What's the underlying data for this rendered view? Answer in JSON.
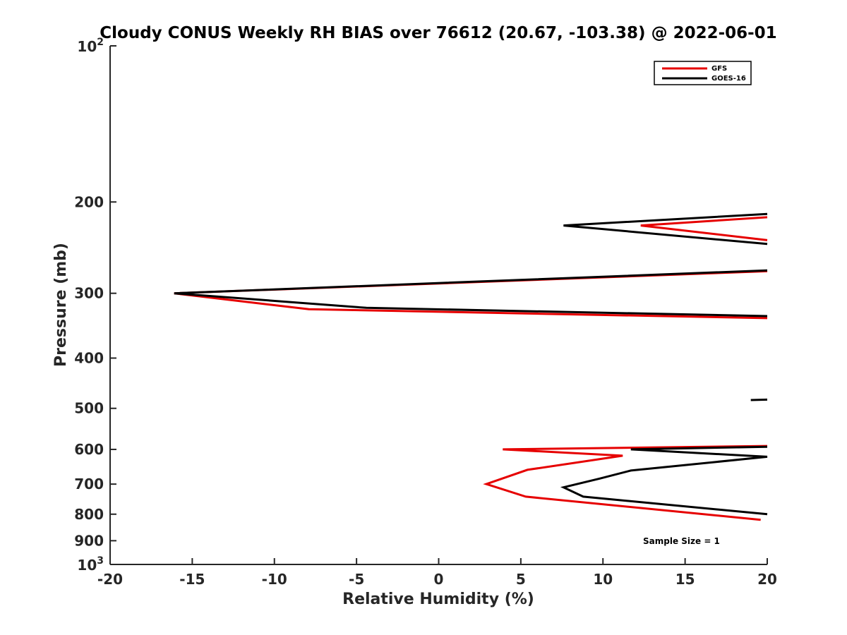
{
  "chart_data": {
    "type": "line",
    "title": "Cloudy CONUS Weekly RH BIAS over 76612 (20.67, -103.38) @ 2022-06-01",
    "xlabel": "Relative Humidity (%)",
    "ylabel": "Pressure (mb)",
    "xlim": [
      -20,
      20
    ],
    "ylim": [
      100,
      1000
    ],
    "yscale": "log",
    "yreversed": true,
    "x_ticks": [
      {
        "value": -20,
        "label": "-20"
      },
      {
        "value": -15,
        "label": "-15"
      },
      {
        "value": -10,
        "label": "-10"
      },
      {
        "value": -5,
        "label": "-5"
      },
      {
        "value": 0,
        "label": "0"
      },
      {
        "value": 5,
        "label": "5"
      },
      {
        "value": 10,
        "label": "10"
      },
      {
        "value": 15,
        "label": "15"
      },
      {
        "value": 20,
        "label": "20"
      }
    ],
    "y_ticks": [
      {
        "value": 100,
        "label": "10",
        "sup": "2"
      },
      {
        "value": 200,
        "label": "200"
      },
      {
        "value": 300,
        "label": "300"
      },
      {
        "value": 400,
        "label": "400"
      },
      {
        "value": 500,
        "label": "500"
      },
      {
        "value": 600,
        "label": "600"
      },
      {
        "value": 700,
        "label": "700"
      },
      {
        "value": 800,
        "label": "800"
      },
      {
        "value": 900,
        "label": "900"
      },
      {
        "value": 1000,
        "label": "10",
        "sup": "3"
      }
    ],
    "legend_position": "top-right",
    "series": [
      {
        "name": "GFS",
        "color": "#e60000",
        "segments": [
          [
            [
              20,
              214
            ],
            [
              12.3,
              222
            ],
            [
              20,
              237
            ]
          ],
          [
            [
              20,
              272
            ],
            [
              -16.1,
              300
            ],
            [
              -7.9,
              322
            ],
            [
              20,
              335
            ]
          ],
          [
            [
              20,
              591
            ],
            [
              3.9,
              600
            ],
            [
              11.2,
              617
            ],
            [
              5.4,
              657
            ],
            [
              2.9,
              700
            ],
            [
              5.3,
              740
            ],
            [
              19.6,
              820
            ]
          ]
        ]
      },
      {
        "name": "GOES-16",
        "color": "#000000",
        "segments": [
          [
            [
              20,
              211
            ],
            [
              7.6,
              222
            ],
            [
              20,
              241
            ]
          ],
          [
            [
              20,
              271
            ],
            [
              -16.1,
              300
            ],
            [
              -4.4,
              320
            ],
            [
              20,
              332
            ]
          ],
          [
            [
              19,
              482
            ],
            [
              20,
              481
            ]
          ],
          [
            [
              20,
              593
            ],
            [
              11.7,
              600
            ],
            [
              20,
              620
            ],
            [
              11.7,
              659
            ],
            [
              9.8,
              683
            ],
            [
              7.6,
              710
            ],
            [
              8.8,
              740
            ],
            [
              20,
              800
            ]
          ]
        ]
      }
    ],
    "annotation": "Sample Size = 1"
  }
}
